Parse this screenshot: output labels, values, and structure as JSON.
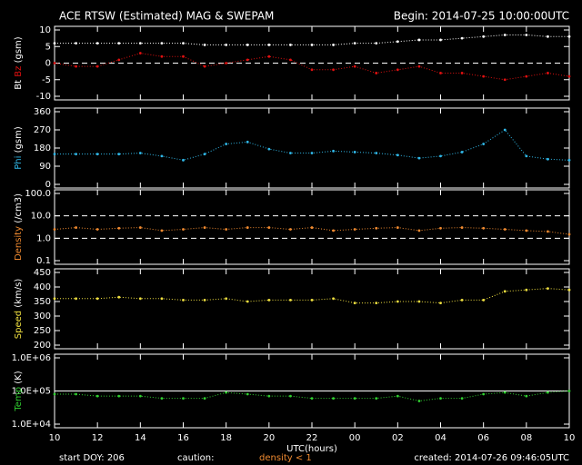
{
  "header": {
    "title": "ACE RTSW (Estimated) MAG & SWEPAM",
    "begin": "Begin: 2014-07-25 10:00:00UTC"
  },
  "footer": {
    "start": "start DOY: 206",
    "caution": "caution:",
    "density_note": "density < 1",
    "created": "created: 2014-07-26 09:46:05UTC"
  },
  "chart_data": [
    {
      "type": "scatter",
      "ylabel_unit": "(gsm)",
      "x": [
        0,
        1,
        2,
        3,
        4,
        5,
        6,
        7,
        8,
        9,
        10,
        11,
        12,
        13,
        14,
        15,
        16,
        17,
        18,
        19,
        20,
        21,
        22,
        23,
        24
      ],
      "xlim": [
        0,
        24
      ],
      "xticks": [
        {
          "value": 0,
          "label": "10"
        },
        {
          "value": 2,
          "label": "12"
        },
        {
          "value": 4,
          "label": "14"
        },
        {
          "value": 6,
          "label": "16"
        },
        {
          "value": 8,
          "label": "18"
        },
        {
          "value": 10,
          "label": "20"
        },
        {
          "value": 12,
          "label": "22"
        },
        {
          "value": 14,
          "label": "00"
        },
        {
          "value": 16,
          "label": "02"
        },
        {
          "value": 18,
          "label": "04"
        },
        {
          "value": 20,
          "label": "06"
        },
        {
          "value": 22,
          "label": "08"
        },
        {
          "value": 24,
          "label": "10"
        }
      ],
      "ylim": [
        -10,
        10
      ],
      "yticks": [
        -10,
        -5,
        0,
        5,
        10
      ],
      "log": false,
      "hlines": [
        {
          "value": 0,
          "style": "dashed"
        }
      ],
      "series": [
        {
          "name": "Bt",
          "color": "#ffffff",
          "values": [
            6,
            6,
            6,
            6,
            6,
            6,
            6,
            5.5,
            5.5,
            5.5,
            5.5,
            5.5,
            5.5,
            5.5,
            6,
            6,
            6.5,
            7,
            7,
            7.5,
            8,
            8.5,
            8.5,
            8,
            8
          ]
        },
        {
          "name": "Bz",
          "color": "#e01010",
          "values": [
            0,
            -1,
            -1,
            1,
            3,
            2,
            2,
            -1,
            0,
            1,
            2,
            1,
            -2,
            -2,
            -1,
            -3,
            -2,
            -1,
            -3,
            -3,
            -4,
            -5,
            -4,
            -3,
            -4
          ]
        }
      ]
    },
    {
      "type": "scatter",
      "ylabel_unit": "(gsm)",
      "x": [
        0,
        1,
        2,
        3,
        4,
        5,
        6,
        7,
        8,
        9,
        10,
        11,
        12,
        13,
        14,
        15,
        16,
        17,
        18,
        19,
        20,
        21,
        22,
        23,
        24
      ],
      "xlim": [
        0,
        24
      ],
      "xticks": [
        {
          "value": 0,
          "label": "10"
        },
        {
          "value": 2,
          "label": "12"
        },
        {
          "value": 4,
          "label": "14"
        },
        {
          "value": 6,
          "label": "16"
        },
        {
          "value": 8,
          "label": "18"
        },
        {
          "value": 10,
          "label": "20"
        },
        {
          "value": 12,
          "label": "22"
        },
        {
          "value": 14,
          "label": "00"
        },
        {
          "value": 16,
          "label": "02"
        },
        {
          "value": 18,
          "label": "04"
        },
        {
          "value": 20,
          "label": "06"
        },
        {
          "value": 22,
          "label": "08"
        },
        {
          "value": 24,
          "label": "10"
        }
      ],
      "ylim": [
        0,
        360
      ],
      "yticks": [
        0,
        90,
        180,
        270,
        360
      ],
      "log": false,
      "hlines": [],
      "series": [
        {
          "name": "Phi",
          "color": "#30b8e8",
          "values": [
            150,
            150,
            150,
            150,
            155,
            140,
            120,
            150,
            200,
            210,
            175,
            155,
            155,
            165,
            160,
            155,
            145,
            130,
            140,
            160,
            200,
            270,
            140,
            125,
            120
          ]
        }
      ]
    },
    {
      "type": "scatter",
      "ylabel_unit": "(/cm3)",
      "x": [
        0,
        1,
        2,
        3,
        4,
        5,
        6,
        7,
        8,
        9,
        10,
        11,
        12,
        13,
        14,
        15,
        16,
        17,
        18,
        19,
        20,
        21,
        22,
        23,
        24
      ],
      "xlim": [
        0,
        24
      ],
      "xticks": [
        {
          "value": 0,
          "label": "10"
        },
        {
          "value": 2,
          "label": "12"
        },
        {
          "value": 4,
          "label": "14"
        },
        {
          "value": 6,
          "label": "16"
        },
        {
          "value": 8,
          "label": "18"
        },
        {
          "value": 10,
          "label": "20"
        },
        {
          "value": 12,
          "label": "22"
        },
        {
          "value": 14,
          "label": "00"
        },
        {
          "value": 16,
          "label": "02"
        },
        {
          "value": 18,
          "label": "04"
        },
        {
          "value": 20,
          "label": "06"
        },
        {
          "value": 22,
          "label": "08"
        },
        {
          "value": 24,
          "label": "10"
        }
      ],
      "ylim": [
        0.1,
        100
      ],
      "yticks": [
        0.1,
        {
          "value": 1,
          "label": "1.0"
        },
        {
          "value": 10,
          "label": "10.0"
        },
        {
          "value": 100,
          "label": "100.0"
        }
      ],
      "log": true,
      "hlines": [
        {
          "value": 1,
          "style": "dashed"
        },
        {
          "value": 10,
          "style": "dashed"
        }
      ],
      "series": [
        {
          "name": "Density",
          "color": "#f08a30",
          "values": [
            2.5,
            3,
            2.5,
            2.8,
            3,
            2.2,
            2.5,
            3,
            2.5,
            3,
            3,
            2.5,
            3,
            2.2,
            2.5,
            2.8,
            3,
            2.2,
            2.8,
            3,
            2.8,
            2.5,
            2.2,
            2,
            1.5
          ]
        }
      ]
    },
    {
      "type": "scatter",
      "ylabel_unit": "(km/s)",
      "x": [
        0,
        1,
        2,
        3,
        4,
        5,
        6,
        7,
        8,
        9,
        10,
        11,
        12,
        13,
        14,
        15,
        16,
        17,
        18,
        19,
        20,
        21,
        22,
        23,
        24
      ],
      "xlim": [
        0,
        24
      ],
      "xticks": [
        {
          "value": 0,
          "label": "10"
        },
        {
          "value": 2,
          "label": "12"
        },
        {
          "value": 4,
          "label": "14"
        },
        {
          "value": 6,
          "label": "16"
        },
        {
          "value": 8,
          "label": "18"
        },
        {
          "value": 10,
          "label": "20"
        },
        {
          "value": 12,
          "label": "22"
        },
        {
          "value": 14,
          "label": "00"
        },
        {
          "value": 16,
          "label": "02"
        },
        {
          "value": 18,
          "label": "04"
        },
        {
          "value": 20,
          "label": "06"
        },
        {
          "value": 22,
          "label": "08"
        },
        {
          "value": 24,
          "label": "10"
        }
      ],
      "ylim": [
        200,
        450
      ],
      "yticks": [
        200,
        250,
        300,
        350,
        400,
        450
      ],
      "log": false,
      "hlines": [],
      "series": [
        {
          "name": "Speed",
          "color": "#f0e040",
          "values": [
            360,
            360,
            360,
            365,
            360,
            360,
            355,
            355,
            360,
            350,
            355,
            355,
            355,
            360,
            345,
            345,
            350,
            350,
            345,
            355,
            355,
            385,
            390,
            395,
            390
          ]
        }
      ]
    },
    {
      "type": "scatter",
      "ylabel_unit": "(K)",
      "xlabel": "UTC(hours)",
      "x": [
        0,
        1,
        2,
        3,
        4,
        5,
        6,
        7,
        8,
        9,
        10,
        11,
        12,
        13,
        14,
        15,
        16,
        17,
        18,
        19,
        20,
        21,
        22,
        23,
        24
      ],
      "xlim": [
        0,
        24
      ],
      "xticks": [
        {
          "value": 0,
          "label": "10"
        },
        {
          "value": 2,
          "label": "12"
        },
        {
          "value": 4,
          "label": "14"
        },
        {
          "value": 6,
          "label": "16"
        },
        {
          "value": 8,
          "label": "18"
        },
        {
          "value": 10,
          "label": "20"
        },
        {
          "value": 12,
          "label": "22"
        },
        {
          "value": 14,
          "label": "00"
        },
        {
          "value": 16,
          "label": "02"
        },
        {
          "value": 18,
          "label": "04"
        },
        {
          "value": 20,
          "label": "06"
        },
        {
          "value": 22,
          "label": "08"
        },
        {
          "value": 24,
          "label": "10"
        }
      ],
      "ylim": [
        10000,
        1000000
      ],
      "yticks": [
        {
          "value": 10000,
          "label": "1.0E+04"
        },
        {
          "value": 100000,
          "label": "1.0E+05"
        },
        {
          "value": 1000000,
          "label": "1.0E+06"
        }
      ],
      "log": true,
      "hlines": [
        {
          "value": 100000,
          "style": "solid"
        }
      ],
      "series": [
        {
          "name": "Temp",
          "color": "#30d030",
          "values": [
            80000,
            80000,
            70000,
            70000,
            70000,
            60000,
            60000,
            60000,
            90000,
            80000,
            70000,
            70000,
            60000,
            60000,
            60000,
            60000,
            70000,
            50000,
            60000,
            60000,
            80000,
            90000,
            70000,
            90000,
            100000
          ]
        }
      ]
    }
  ]
}
